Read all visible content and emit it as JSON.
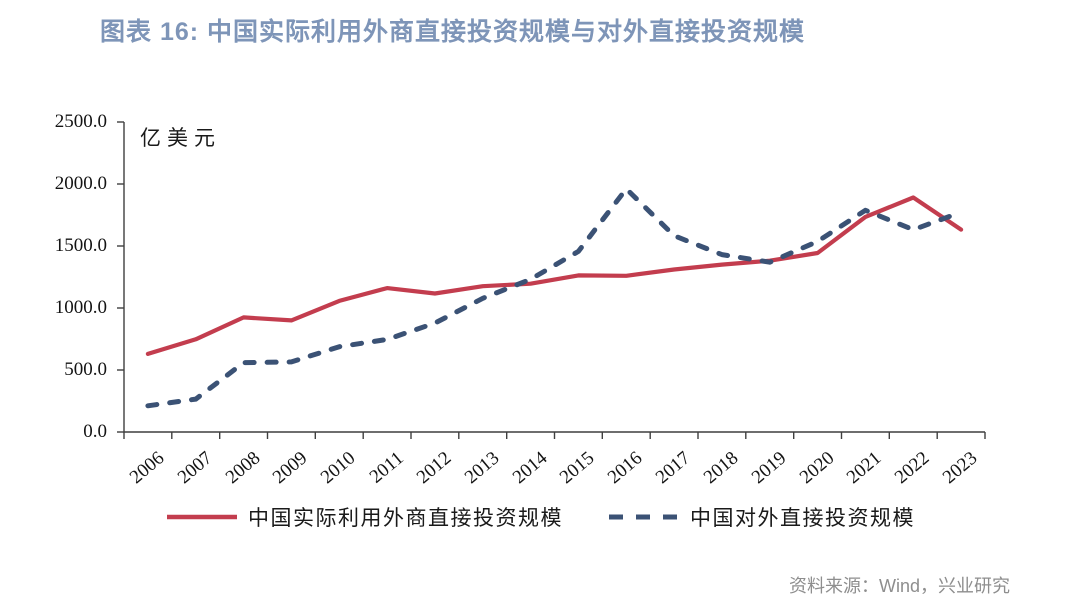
{
  "header": {
    "title": "图表 16: 中国实际利用外商直接投资规模与对外直接投资规模"
  },
  "footer": {
    "source": "资料来源：Wind，兴业研究"
  },
  "chart_data": {
    "type": "line",
    "title": "图表 16: 中国实际利用外商直接投资规模与对外直接投资规模",
    "unit": "亿美元",
    "categories": [
      "2006",
      "2007",
      "2008",
      "2009",
      "2010",
      "2011",
      "2012",
      "2013",
      "2014",
      "2015",
      "2016",
      "2017",
      "2018",
      "2019",
      "2020",
      "2021",
      "2022",
      "2023"
    ],
    "series": [
      {
        "name": "中国实际利用外商直接投资规模",
        "style": "solid",
        "color": "#C33D4E",
        "values": [
          630.2,
          747.7,
          923.9,
          900.3,
          1057.4,
          1160.1,
          1117.2,
          1175.9,
          1195.6,
          1262.7,
          1260.0,
          1310.4,
          1349.7,
          1381.4,
          1443.7,
          1734.8,
          1891.3,
          1632.5
        ]
      },
      {
        "name": "中国对外直接投资规模",
        "style": "dashed",
        "color": "#3B5275",
        "values": [
          211.6,
          265.1,
          559.1,
          565.3,
          688.1,
          746.5,
          878.0,
          1078.4,
          1231.2,
          1456.7,
          1961.5,
          1582.9,
          1430.4,
          1369.1,
          1537.2,
          1788.2,
          1631.2,
          1772.9
        ]
      }
    ],
    "ylim": [
      0,
      2500
    ],
    "ytick_step": 500,
    "ytick_labels": [
      "0.0",
      "500.0",
      "1000.0",
      "1500.0",
      "2000.0",
      "2500.0"
    ],
    "axis_color": "#3F3F3F",
    "grid": false,
    "legend_position": "bottom"
  }
}
